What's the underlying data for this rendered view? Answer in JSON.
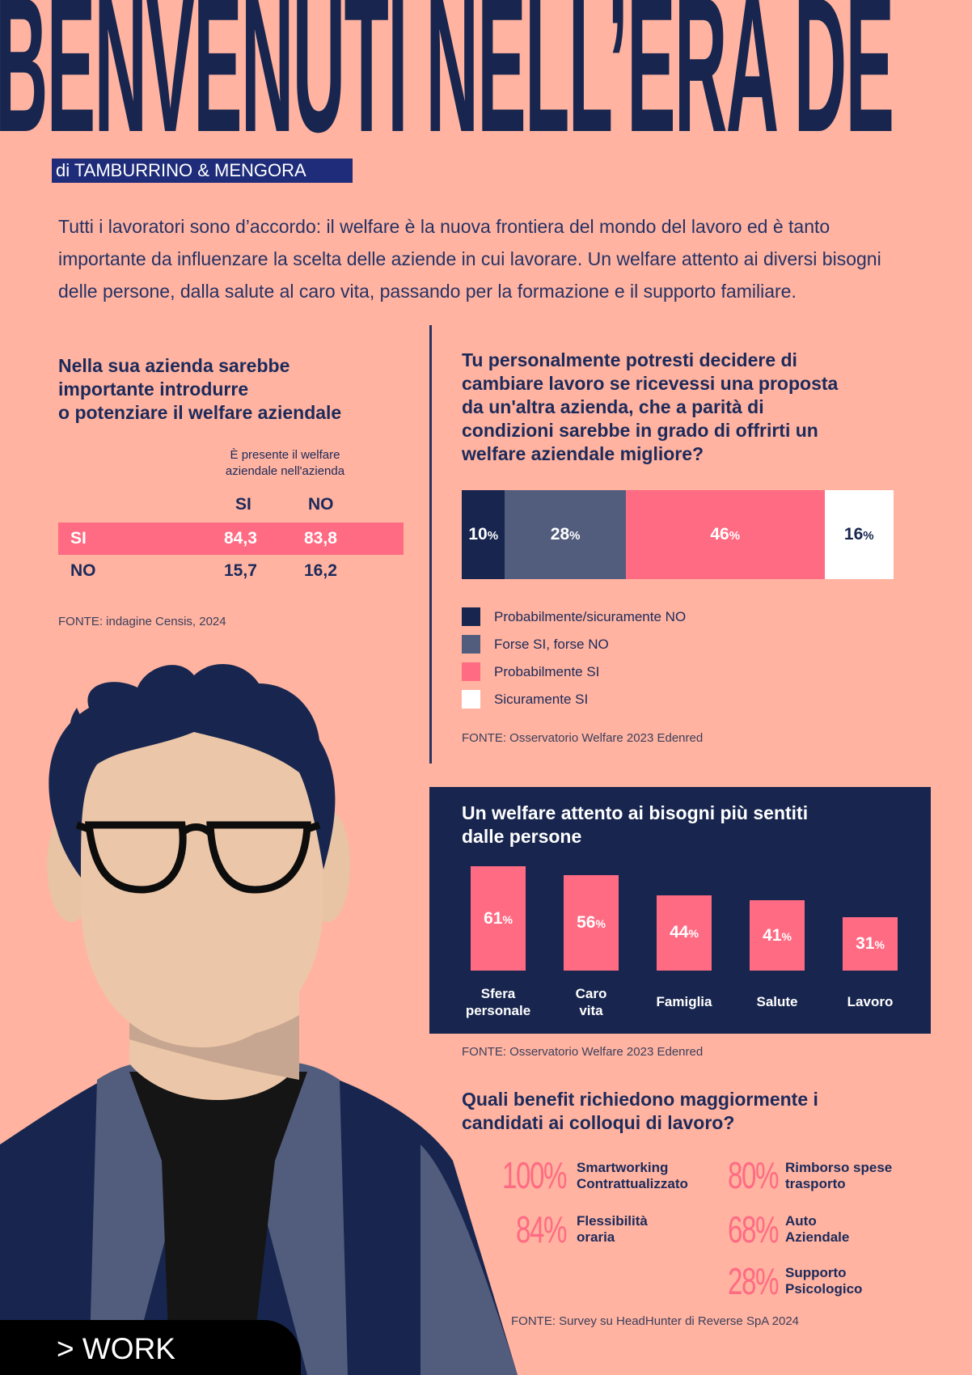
{
  "header": {
    "headline": "BENVENUTI NELL’ERA DE",
    "byline": "di TAMBURRINO & MENGORA"
  },
  "intro": "Tutti i lavoratori sono d’accordo: il welfare è la nuova frontiera del mondo del lavoro ed è tanto importante da influenzare la scelta delle aziende in cui lavorare. Un welfare attento ai diversi bisogni delle persone, dalla salute al caro vita, passando per la formazione e il supporto familiare.",
  "left_section": {
    "title_lines": [
      "Nella sua azienda sarebbe",
      "importante introdurre",
      "o potenziare il welfare aziendale"
    ],
    "caption_lines": [
      "È presente il welfare",
      "aziendale nell'azienda"
    ],
    "col_headers": [
      "SI",
      "NO"
    ],
    "rows": [
      {
        "label": "SI",
        "si": "84,3",
        "no": "83,8"
      },
      {
        "label": "NO",
        "si": "15,7",
        "no": "16,2"
      }
    ],
    "source": "FONTE: indagine Censis, 2024"
  },
  "right_section": {
    "title_lines": [
      "Tu personalmente potresti decidere di",
      "cambiare lavoro se ricevessi una proposta",
      "da un'altra azienda, che a parità di",
      "condizioni sarebbe in grado di offrirti un",
      "welfare aziendale migliore?"
    ],
    "source": "FONTE: Osservatorio Welfare 2023 Edenred"
  },
  "needs_section": {
    "title_lines": [
      "Un welfare attento ai bisogni più sentiti",
      "dalle persone"
    ],
    "source": "FONTE: Osservatorio Welfare 2023 Edenred"
  },
  "benefits": {
    "title_lines": [
      "Quali benefit richiedono maggiormente i",
      "candidati ai colloqui di lavoro?"
    ],
    "items": [
      {
        "pct": "100%",
        "line1": "Smartworking",
        "line2": "Contrattualizzato"
      },
      {
        "pct": "84%",
        "line1": "Flessibilità",
        "line2": "oraria"
      },
      {
        "pct": "80%",
        "line1": "Rimborso spese",
        "line2": "trasporto"
      },
      {
        "pct": "68%",
        "line1": "Auto",
        "line2": "Aziendale"
      },
      {
        "pct": "28%",
        "line1": "Supporto",
        "line2": "Psicologico"
      }
    ],
    "source": "FONTE: Survey su HeadHunter di Reverse SpA 2024"
  },
  "footer": {
    "tab": "> WORK"
  },
  "colors": {
    "navy": "#18264f",
    "slate": "#525d7d",
    "pink": "#ff6b83",
    "white": "#ffffff",
    "background": "#ffb3a0",
    "skin": "#ecc6a8"
  },
  "chart_data": [
    {
      "type": "bar",
      "stacked": true,
      "orientation": "horizontal",
      "unit": "%",
      "series": [
        {
          "name": "Probabilmente/sicuramente NO",
          "values": [
            10
          ],
          "color": "#18264f"
        },
        {
          "name": "Forse SI, forse NO",
          "values": [
            28
          ],
          "color": "#525d7d"
        },
        {
          "name": "Probabilmente SI",
          "values": [
            46
          ],
          "color": "#ff6b83"
        },
        {
          "name": "Sicuramente SI",
          "values": [
            16
          ],
          "color": "#ffffff"
        }
      ],
      "legend": "below"
    },
    {
      "type": "bar",
      "unit": "%",
      "categories": [
        "Sfera personale",
        "Caro vita",
        "Famiglia",
        "Salute",
        "Lavoro"
      ],
      "category_lines": [
        [
          "Sfera",
          "personale"
        ],
        [
          "Caro",
          "vita"
        ],
        [
          "Famiglia"
        ],
        [
          "Salute"
        ],
        [
          "Lavoro"
        ]
      ],
      "values": [
        61,
        56,
        44,
        41,
        31
      ]
    }
  ]
}
